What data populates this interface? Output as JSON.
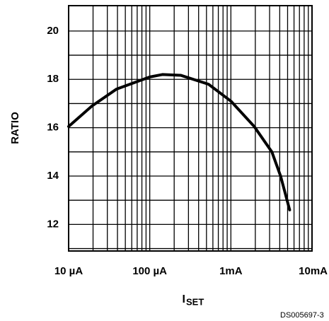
{
  "chart_data": {
    "type": "line",
    "ylabel": "RATIO",
    "xlabel": "I",
    "xlabel_subscript": "SET",
    "footnote": "DS005697-3",
    "xscale": "log",
    "xlim": [
      1e-05,
      0.01
    ],
    "xticks": [
      {
        "value": 1e-05,
        "label": "10 µA"
      },
      {
        "value": 0.0001,
        "label": "100 µA"
      },
      {
        "value": 0.001,
        "label": "1mA"
      },
      {
        "value": 0.01,
        "label": "10mA"
      }
    ],
    "x_minor_grid": [
      2e-05,
      3e-05,
      4e-05,
      5e-05,
      6e-05,
      7e-05,
      8e-05,
      9e-05,
      0.0002,
      0.0003,
      0.0004,
      0.0005,
      0.0006,
      0.0007,
      0.0008,
      0.0009,
      0.002,
      0.003,
      0.004,
      0.005,
      0.006,
      0.007,
      0.008,
      0.009
    ],
    "ylim": [
      10.9,
      21.05
    ],
    "yticks": [
      12,
      14,
      16,
      18,
      20
    ],
    "y_minor_grid": [
      11,
      13,
      15,
      17,
      19
    ],
    "grid": true,
    "series": [
      {
        "color": "#000000",
        "x": [
          1e-05,
          1.94e-05,
          3.9e-05,
          0.0001,
          0.000143,
          0.00024,
          0.00053,
          0.001,
          0.00194,
          0.0032,
          0.0041,
          0.0053
        ],
        "values": [
          16.05,
          16.9,
          17.6,
          18.1,
          18.2,
          18.17,
          17.8,
          17.1,
          16.05,
          15.0,
          14.0,
          12.6
        ]
      }
    ]
  }
}
